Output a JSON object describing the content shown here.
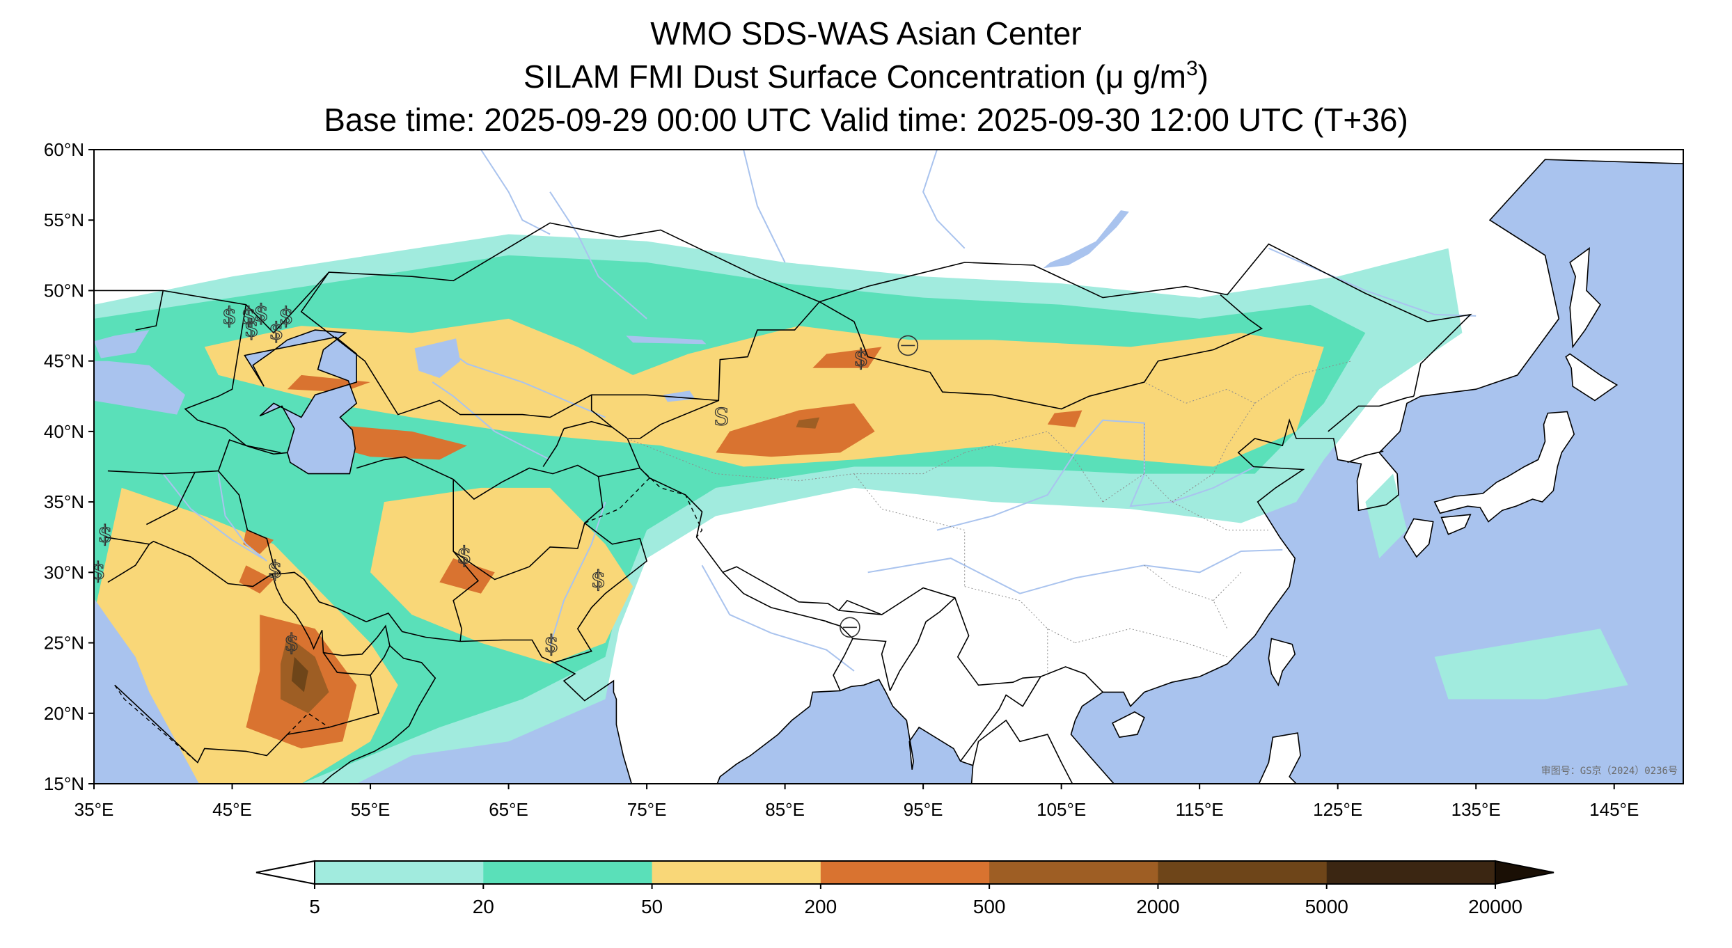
{
  "title": {
    "line1": "WMO SDS-WAS Asian Center",
    "line2_main": "SILAM FMI Dust Surface Concentration (μ g/m",
    "line2_sup": "3",
    "line2_end": ")",
    "line3": "Base time: 2025-09-29 00:00 UTC Valid time: 2025-09-30 12:00 UTC (T+36)"
  },
  "map": {
    "lon_range": [
      35,
      150
    ],
    "lat_range": [
      15,
      60
    ],
    "x_ticks": [
      {
        "lon": 35,
        "label": "35°E"
      },
      {
        "lon": 45,
        "label": "45°E"
      },
      {
        "lon": 55,
        "label": "55°E"
      },
      {
        "lon": 65,
        "label": "65°E"
      },
      {
        "lon": 75,
        "label": "75°E"
      },
      {
        "lon": 85,
        "label": "85°E"
      },
      {
        "lon": 95,
        "label": "95°E"
      },
      {
        "lon": 105,
        "label": "105°E"
      },
      {
        "lon": 115,
        "label": "115°E"
      },
      {
        "lon": 125,
        "label": "125°E"
      },
      {
        "lon": 135,
        "label": "135°E"
      },
      {
        "lon": 145,
        "label": "145°E"
      }
    ],
    "y_ticks": [
      {
        "lat": 60,
        "label": "60°N"
      },
      {
        "lat": 55,
        "label": "55°N"
      },
      {
        "lat": 50,
        "label": "50°N"
      },
      {
        "lat": 45,
        "label": "45°N"
      },
      {
        "lat": 40,
        "label": "40°N"
      },
      {
        "lat": 35,
        "label": "35°N"
      },
      {
        "lat": 30,
        "label": "30°N"
      },
      {
        "lat": 25,
        "label": "25°N"
      },
      {
        "lat": 20,
        "label": "20°N"
      },
      {
        "lat": 15,
        "label": "15°N"
      }
    ],
    "watermark": "审图号：GS京（2024）0236号",
    "colors": {
      "ocean": "#a9c3ee",
      "land": "#ffffff",
      "border": "#000000",
      "river": "#a9c3ee"
    },
    "station_symbols": [
      {
        "lon": 44.8,
        "lat": 48.1,
        "symbol": "$"
      },
      {
        "lon": 46.2,
        "lat": 48.1,
        "symbol": "$"
      },
      {
        "lon": 47.1,
        "lat": 48.3,
        "symbol": "$"
      },
      {
        "lon": 48.9,
        "lat": 48.1,
        "symbol": "$"
      },
      {
        "lon": 46.4,
        "lat": 47.2,
        "symbol": "$"
      },
      {
        "lon": 48.2,
        "lat": 47.0,
        "symbol": "$"
      },
      {
        "lon": 90.5,
        "lat": 45.1,
        "symbol": "$"
      },
      {
        "lon": 80.4,
        "lat": 40.9,
        "symbol": "S"
      },
      {
        "lon": 35.8,
        "lat": 32.6,
        "symbol": "$"
      },
      {
        "lon": 35.3,
        "lat": 30.0,
        "symbol": "$"
      },
      {
        "lon": 48.1,
        "lat": 30.1,
        "symbol": "$"
      },
      {
        "lon": 61.8,
        "lat": 31.1,
        "symbol": "$"
      },
      {
        "lon": 71.5,
        "lat": 29.4,
        "symbol": "$"
      },
      {
        "lon": 68.1,
        "lat": 24.8,
        "symbol": "$"
      },
      {
        "lon": 49.3,
        "lat": 24.9,
        "symbol": "$"
      }
    ],
    "circle_symbols": [
      {
        "lon": 93.9,
        "lat": 46.1
      },
      {
        "lon": 89.7,
        "lat": 26.1
      }
    ]
  },
  "dust_field": [
    {
      "level": 1,
      "color": "#a1ebde",
      "polys": [
        [
          [
            35,
            49
          ],
          [
            45,
            51
          ],
          [
            55,
            52.5
          ],
          [
            65,
            54
          ],
          [
            75,
            53.5
          ],
          [
            85,
            52
          ],
          [
            95,
            51
          ],
          [
            105,
            50.5
          ],
          [
            115,
            49.5
          ],
          [
            125,
            51
          ],
          [
            133,
            53
          ],
          [
            134,
            47
          ],
          [
            128,
            43
          ],
          [
            124,
            38
          ],
          [
            122,
            35
          ],
          [
            118,
            33.5
          ],
          [
            110,
            34.5
          ],
          [
            100,
            35
          ],
          [
            90,
            36
          ],
          [
            80,
            34
          ],
          [
            75,
            31
          ],
          [
            73,
            26
          ],
          [
            72,
            21
          ],
          [
            65,
            18
          ],
          [
            58,
            17
          ],
          [
            54,
            15
          ],
          [
            35,
            15
          ]
        ],
        [
          [
            132,
            24
          ],
          [
            144,
            26
          ],
          [
            146,
            22
          ],
          [
            140,
            21
          ],
          [
            133,
            21
          ]
        ],
        [
          [
            129,
            37
          ],
          [
            130,
            33
          ],
          [
            128,
            31
          ],
          [
            127,
            35
          ]
        ]
      ]
    },
    {
      "level": 2,
      "color": "#5ae0b9",
      "polys": [
        [
          [
            35,
            48
          ],
          [
            45,
            49.5
          ],
          [
            55,
            51
          ],
          [
            65,
            52.5
          ],
          [
            75,
            52
          ],
          [
            85,
            50.5
          ],
          [
            95,
            49.5
          ],
          [
            105,
            49
          ],
          [
            115,
            48
          ],
          [
            123,
            49
          ],
          [
            127,
            47
          ],
          [
            124,
            42
          ],
          [
            119,
            37
          ],
          [
            110,
            37
          ],
          [
            100,
            37.5
          ],
          [
            90,
            37.5
          ],
          [
            80,
            36
          ],
          [
            75,
            33
          ],
          [
            73,
            28
          ],
          [
            72,
            24
          ],
          [
            66,
            21
          ],
          [
            60,
            19
          ],
          [
            55,
            17
          ],
          [
            50,
            15
          ],
          [
            35,
            15
          ]
        ]
      ]
    },
    {
      "level": 3,
      "color": "#f9d778",
      "polys": [
        [
          [
            43,
            46
          ],
          [
            50,
            47.5
          ],
          [
            58,
            47
          ],
          [
            65,
            48
          ],
          [
            70,
            46
          ],
          [
            74,
            44
          ],
          [
            78,
            45.5
          ],
          [
            86,
            47.5
          ],
          [
            94,
            46.5
          ],
          [
            100,
            46.5
          ],
          [
            110,
            46
          ],
          [
            118,
            47
          ],
          [
            124,
            46
          ],
          [
            122,
            40
          ],
          [
            116,
            37.5
          ],
          [
            110,
            38
          ],
          [
            100,
            39
          ],
          [
            90,
            38
          ],
          [
            82,
            37.5
          ],
          [
            76,
            39
          ],
          [
            70,
            39.5
          ],
          [
            65,
            40
          ],
          [
            58,
            41
          ],
          [
            52,
            42
          ],
          [
            48,
            43
          ],
          [
            44,
            44
          ]
        ],
        [
          [
            37,
            36
          ],
          [
            43,
            34
          ],
          [
            48,
            32
          ],
          [
            52,
            28
          ],
          [
            55,
            25
          ],
          [
            57,
            22
          ],
          [
            55,
            18
          ],
          [
            50,
            15
          ],
          [
            37,
            15
          ],
          [
            35,
            19
          ],
          [
            35,
            27
          ]
        ],
        [
          [
            56,
            35
          ],
          [
            63,
            36
          ],
          [
            68,
            36
          ],
          [
            72,
            32
          ],
          [
            74,
            29
          ],
          [
            72,
            25
          ],
          [
            68,
            23.5
          ],
          [
            63,
            25
          ],
          [
            58,
            27
          ],
          [
            55,
            30
          ]
        ]
      ]
    },
    {
      "level": 4,
      "color": "#d97330",
      "polys": [
        [
          [
            81,
            40
          ],
          [
            86,
            41.5
          ],
          [
            90,
            42
          ],
          [
            91.5,
            40
          ],
          [
            89,
            38.5
          ],
          [
            84,
            38.2
          ],
          [
            80,
            38.5
          ]
        ],
        [
          [
            88,
            45.5
          ],
          [
            92,
            46
          ],
          [
            91,
            44.5
          ],
          [
            87,
            44.5
          ]
        ],
        [
          [
            52,
            40.5
          ],
          [
            58,
            40
          ],
          [
            62,
            39
          ],
          [
            60,
            38
          ],
          [
            55,
            38.2
          ],
          [
            52,
            39
          ]
        ],
        [
          [
            50,
            44
          ],
          [
            55,
            43.5
          ],
          [
            53,
            42.8
          ],
          [
            49,
            43
          ]
        ],
        [
          [
            47,
            27
          ],
          [
            51,
            26
          ],
          [
            54,
            22
          ],
          [
            53,
            18
          ],
          [
            50,
            17.5
          ],
          [
            46,
            19
          ],
          [
            47,
            23
          ]
        ],
        [
          [
            61,
            31
          ],
          [
            64,
            30
          ],
          [
            63,
            28.5
          ],
          [
            60,
            29.3
          ]
        ],
        [
          [
            46,
            30.5
          ],
          [
            48,
            29.5
          ],
          [
            47,
            28.5
          ],
          [
            45.5,
            29.3
          ]
        ],
        [
          [
            46,
            33
          ],
          [
            48,
            32.3
          ],
          [
            47,
            31.3
          ],
          [
            45.8,
            32
          ]
        ],
        [
          [
            104.5,
            41.3
          ],
          [
            106.5,
            41.5
          ],
          [
            106,
            40.3
          ],
          [
            104,
            40.5
          ]
        ]
      ]
    },
    {
      "level": 5,
      "color": "#9e5e24",
      "polys": [
        [
          [
            49,
            25.5
          ],
          [
            51,
            24
          ],
          [
            52,
            21.5
          ],
          [
            50.5,
            20
          ],
          [
            48.5,
            21
          ],
          [
            48.5,
            23.5
          ]
        ],
        [
          [
            86,
            40.8
          ],
          [
            87.5,
            41
          ],
          [
            87.2,
            40.2
          ],
          [
            85.8,
            40.3
          ]
        ]
      ]
    },
    {
      "level": 6,
      "color": "#6e4519",
      "polys": [
        [
          [
            49.5,
            24
          ],
          [
            50.5,
            23
          ],
          [
            50.2,
            21.5
          ],
          [
            49.3,
            22.3
          ]
        ]
      ]
    }
  ],
  "colorbar": {
    "labels": [
      "5",
      "20",
      "50",
      "200",
      "500",
      "2000",
      "5000",
      "20000"
    ],
    "colors": [
      "#a1ebde",
      "#5ae0b9",
      "#f9d778",
      "#d97330",
      "#9e5e24",
      "#6e4519",
      "#3b2612"
    ],
    "under_color": "#ffffff",
    "over_color": "#1a0f05"
  }
}
